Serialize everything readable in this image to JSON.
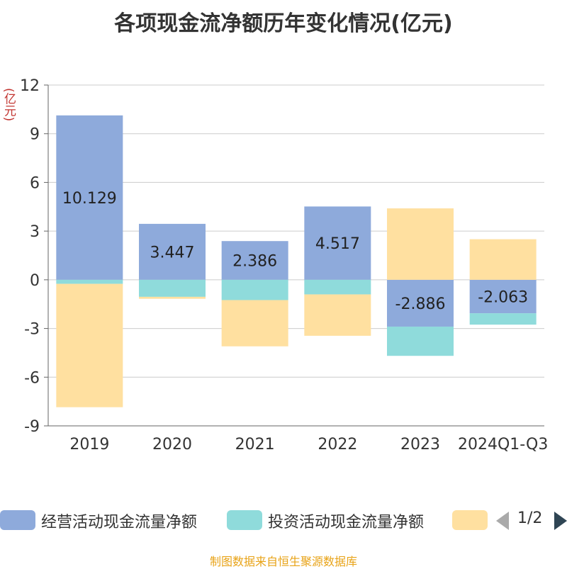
{
  "chart_data": {
    "type": "bar",
    "stacked": true,
    "title": "各项现金流净额历年变化情况(亿元)",
    "ylabel": "(亿元)",
    "categories": [
      "2019",
      "2020",
      "2021",
      "2022",
      "2023",
      "2024Q1-Q3"
    ],
    "ylim": [
      -9,
      12
    ],
    "yticks": [
      12,
      9,
      6,
      3,
      0,
      -3,
      -6,
      -9
    ],
    "grid": true,
    "series": [
      {
        "name": "经营活动现金流量净额",
        "color": "#8eaadb",
        "values": [
          10.129,
          3.447,
          2.386,
          4.517,
          -2.886,
          -2.063
        ],
        "labels": [
          "10.129",
          "3.447",
          "2.386",
          "4.517",
          "-2.886",
          "-2.063"
        ]
      },
      {
        "name": "投资活动现金流量净额",
        "color": "#8fdbdb",
        "values": [
          -0.25,
          -1.05,
          -1.25,
          -0.9,
          -1.8,
          -0.7
        ]
      },
      {
        "name": "",
        "color": "#ffe0a0",
        "values": [
          -7.6,
          -0.12,
          -2.85,
          -2.55,
          4.4,
          2.5
        ]
      }
    ]
  },
  "legend": {
    "items": [
      {
        "label": "经营活动现金流量净额",
        "color": "#8eaadb"
      },
      {
        "label": "投资活动现金流量净额",
        "color": "#8fdbdb"
      },
      {
        "label": "",
        "color": "#ffe0a0"
      }
    ],
    "page": "1/2"
  },
  "source_note": "制图数据来自恒生聚源数据库"
}
